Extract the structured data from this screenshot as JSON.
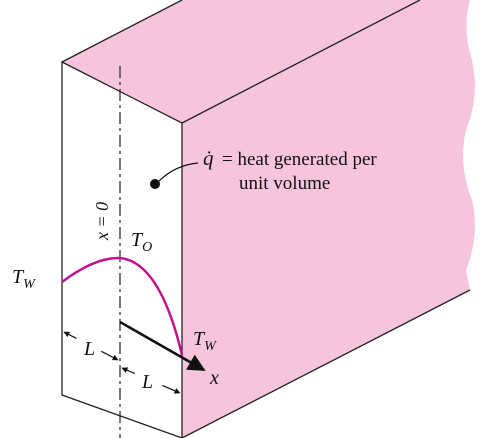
{
  "annotation": {
    "symbol": "q̇",
    "line1": "= heat generated per",
    "line2": "unit volume"
  },
  "axis_label": "x = 0",
  "center_temperature": {
    "symbol": "T",
    "subscript": "O"
  },
  "left_wall_temperature": {
    "symbol": "T",
    "subscript": "W"
  },
  "right_wall_temperature": {
    "symbol": "T",
    "subscript": "W"
  },
  "half_width_left": "L",
  "half_width_right": "L",
  "x_axis": "x"
}
